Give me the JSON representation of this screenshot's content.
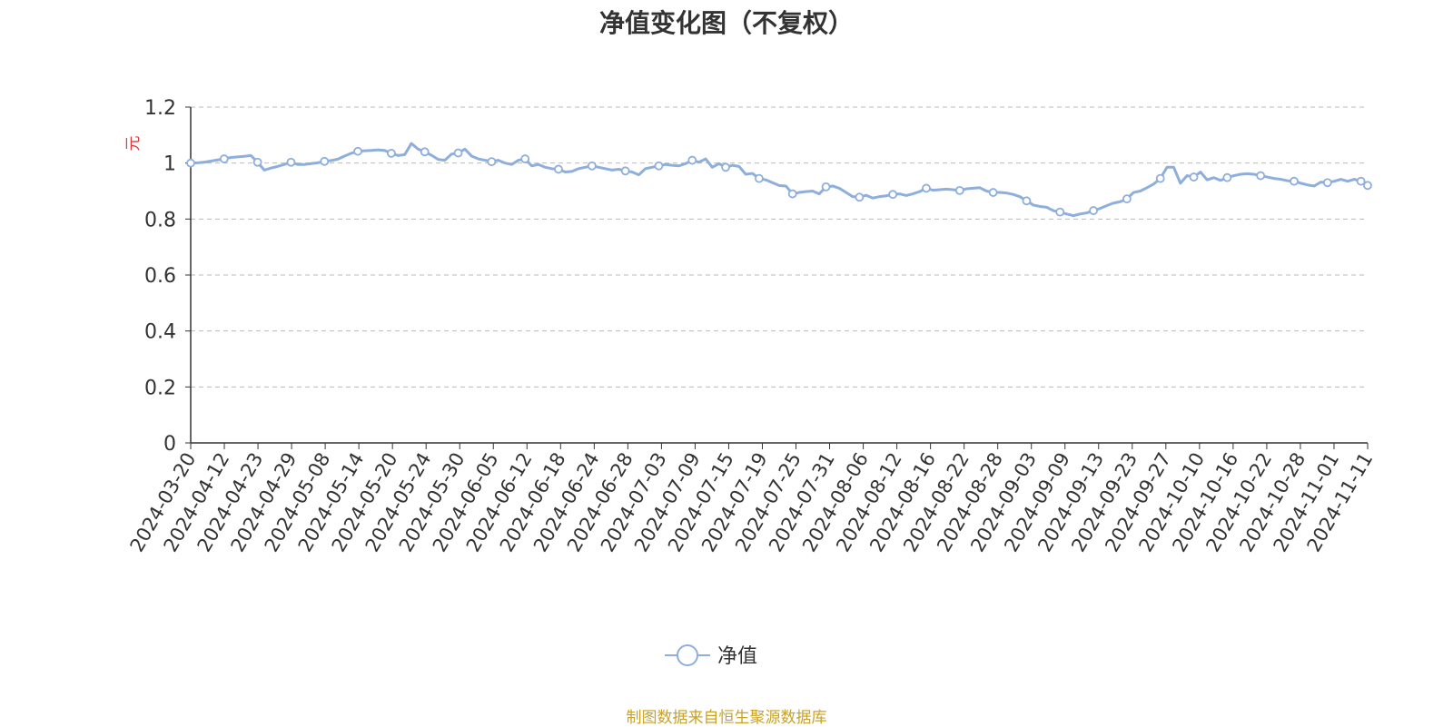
{
  "chart_data": {
    "type": "line",
    "title": "净值变化图（不复权）",
    "ylabel": "元",
    "ylim": [
      0,
      1.2
    ],
    "yticks": [
      0,
      0.2,
      0.4,
      0.6,
      0.8,
      1,
      1.2
    ],
    "xtick_labels": [
      "2024-03-20",
      "2024-04-12",
      "2024-04-23",
      "2024-04-29",
      "2024-05-08",
      "2024-05-14",
      "2024-05-20",
      "2024-05-24",
      "2024-05-30",
      "2024-06-05",
      "2024-06-12",
      "2024-06-18",
      "2024-06-24",
      "2024-06-28",
      "2024-07-03",
      "2024-07-09",
      "2024-07-15",
      "2024-07-19",
      "2024-07-25",
      "2024-07-31",
      "2024-08-06",
      "2024-08-12",
      "2024-08-16",
      "2024-08-22",
      "2024-08-28",
      "2024-09-03",
      "2024-09-09",
      "2024-09-13",
      "2024-09-23",
      "2024-09-27",
      "2024-10-10",
      "2024-10-16",
      "2024-10-22",
      "2024-10-28",
      "2024-11-01",
      "2024-11-11"
    ],
    "grid": true,
    "legend_position": "bottom-center",
    "series": [
      {
        "name": "净值",
        "color": "#8eaedc",
        "values": [
          1.0,
          1.001,
          1.003,
          1.007,
          1.011,
          1.015,
          1.02,
          1.022,
          1.024,
          1.027,
          1.003,
          0.975,
          0.982,
          0.988,
          0.995,
          1.003,
          0.995,
          0.995,
          0.998,
          1.001,
          1.006,
          1.009,
          1.014,
          1.025,
          1.035,
          1.042,
          1.044,
          1.045,
          1.047,
          1.045,
          1.035,
          1.027,
          1.03,
          1.07,
          1.05,
          1.04,
          1.028,
          1.013,
          1.01,
          1.032,
          1.036,
          1.05,
          1.025,
          1.015,
          1.01,
          1.005,
          1.01,
          1.0,
          0.995,
          1.01,
          1.015,
          0.99,
          0.995,
          0.985,
          0.98,
          0.978,
          0.968,
          0.97,
          0.98,
          0.985,
          0.99,
          0.985,
          0.98,
          0.975,
          0.978,
          0.972,
          0.968,
          0.958,
          0.98,
          0.985,
          0.99,
          0.995,
          0.992,
          0.99,
          0.998,
          1.01,
          1.003,
          1.015,
          0.985,
          0.998,
          0.985,
          0.992,
          0.988,
          0.96,
          0.963,
          0.945,
          0.94,
          0.93,
          0.92,
          0.918,
          0.89,
          0.895,
          0.898,
          0.9,
          0.89,
          0.915,
          0.918,
          0.91,
          0.895,
          0.88,
          0.878,
          0.885,
          0.875,
          0.88,
          0.883,
          0.888,
          0.89,
          0.884,
          0.89,
          0.898,
          0.91,
          0.903,
          0.905,
          0.907,
          0.905,
          0.902,
          0.908,
          0.91,
          0.912,
          0.9,
          0.895,
          0.895,
          0.893,
          0.888,
          0.88,
          0.865,
          0.85,
          0.845,
          0.842,
          0.83,
          0.825,
          0.818,
          0.812,
          0.818,
          0.822,
          0.83,
          0.838,
          0.848,
          0.857,
          0.862,
          0.872,
          0.895,
          0.9,
          0.912,
          0.925,
          0.945,
          0.985,
          0.985,
          0.928,
          0.955,
          0.95,
          0.968,
          0.94,
          0.948,
          0.938,
          0.948,
          0.955,
          0.96,
          0.962,
          0.96,
          0.955,
          0.95,
          0.945,
          0.942,
          0.937,
          0.935,
          0.928,
          0.922,
          0.918,
          0.932,
          0.93,
          0.935,
          0.942,
          0.935,
          0.942,
          0.935,
          0.92
        ]
      }
    ]
  },
  "legend": {
    "label": "净值"
  },
  "source": "制图数据来自恒生聚源数据库"
}
